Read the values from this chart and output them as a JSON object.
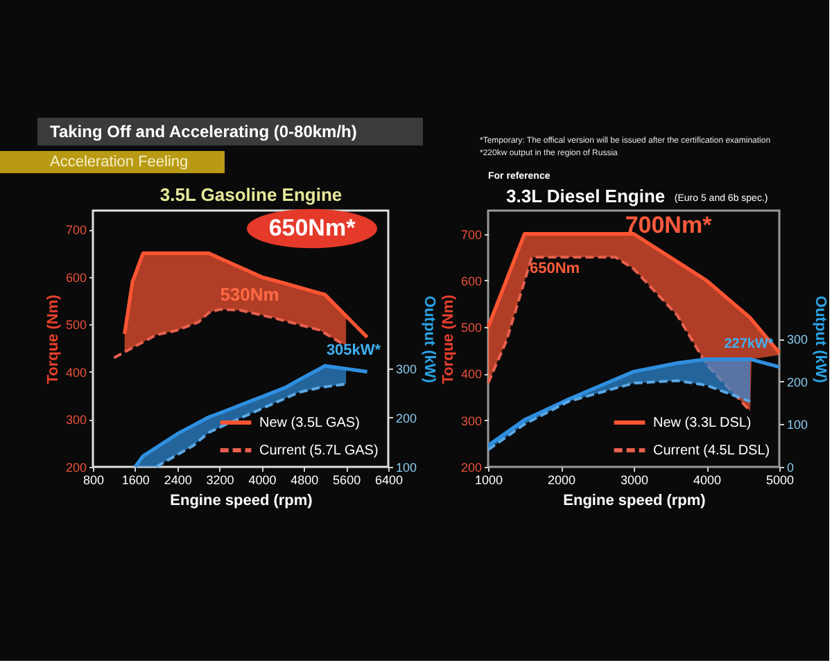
{
  "chart_data": [
    {
      "type": "other",
      "title": "Taking Off and Accelerating (0-80km/h)",
      "subtitle": "Acceleration Feeling",
      "annotations": [
        "*Temporary: The offical version will be issued after the certification examination",
        "*220kw output in the region of Russia"
      ]
    },
    {
      "type": "line",
      "title": "3.5L Gasoline Engine",
      "xlabel": "Engine speed (rpm)",
      "ylabel": "Torque (Nm)",
      "y2label": "Output (kW)",
      "xlim": [
        800,
        6400
      ],
      "xticks": [
        800,
        1600,
        2400,
        3200,
        4000,
        4800,
        5600,
        6400
      ],
      "ylim": [
        200,
        740
      ],
      "yticks": [
        200,
        300,
        400,
        500,
        600,
        700
      ],
      "y2lim": [
        100,
        620
      ],
      "y2ticks": [
        100,
        200,
        300
      ],
      "legend": "bottom right",
      "annotations": [
        "650Nm*",
        "530Nm",
        "305kW*"
      ],
      "series": [
        {
          "name": "New (3.5L GAS)",
          "color": "#ff5533",
          "x": [
            1400,
            1550,
            1750,
            2000,
            2400,
            2800,
            3000,
            3200,
            3600,
            4000,
            4300,
            5100,
            5200,
            5600,
            6000
          ],
          "values": [
            480,
            590,
            650,
            650,
            650,
            650,
            650,
            640,
            620,
            600,
            591,
            566,
            563,
            518,
            473
          ],
          "lower": [
            442,
            451,
            463,
            478,
            488,
            505,
            525,
            532,
            530,
            520,
            512,
            488,
            481,
            455,
            null
          ],
          "upper": [
            480,
            590,
            650,
            650,
            650,
            650,
            650,
            640,
            620,
            600,
            591,
            566,
            563,
            518,
            null
          ]
        },
        {
          "name": "Current (5.7L GAS)",
          "color": "#e8604f",
          "line_style": "dashed",
          "x": [
            1200,
            2000,
            2400,
            2800,
            3000,
            3200,
            3600,
            4300,
            5100,
            5600
          ],
          "values": [
            430,
            478,
            488,
            505,
            525,
            532,
            530,
            512,
            488,
            455
          ]
        },
        {
          "color": "#2f8fe0",
          "axis": "y2",
          "x": [
            1600,
            1750,
            2000,
            2400,
            2700,
            3000,
            3300,
            3750,
            4000,
            4450,
            4700,
            5100,
            5200,
            5600,
            6000
          ],
          "values": [
            100,
            122,
            139,
            167,
            184,
            201,
            213,
            232,
            242,
            261,
            276,
            299,
            305,
            299,
            293
          ],
          "lower": [
            100,
            100,
            100,
            125,
            143,
            170,
            185,
            206,
            218,
            239,
            251,
            261,
            262,
            268,
            null
          ],
          "upper": [
            100,
            122,
            139,
            167,
            184,
            201,
            213,
            232,
            242,
            261,
            276,
            299,
            305,
            299,
            null
          ]
        },
        {
          "color": "#5aa8e6",
          "axis": "y2",
          "line_style": "dashed",
          "x": [
            2000,
            2700,
            3000,
            3300,
            4000,
            4700,
            5100,
            5600
          ],
          "values": [
            100,
            143,
            170,
            185,
            218,
            251,
            261,
            268
          ]
        }
      ]
    },
    {
      "type": "line",
      "title": "3.3L Diesel Engine",
      "subtitle": "(Euro 5 and 6b spec.)",
      "xlabel": "Engine speed (rpm)",
      "ylabel": "Torque (Nm)",
      "y2label": "Output (kW)",
      "xlim": [
        1000,
        5000
      ],
      "xticks": [
        1000,
        2000,
        3000,
        4000,
        5000
      ],
      "ylim": [
        200,
        750
      ],
      "yticks": [
        200,
        300,
        400,
        500,
        600,
        700
      ],
      "y2lim": [
        0,
        600
      ],
      "y2ticks": [
        0,
        100,
        200,
        300
      ],
      "legend": "bottom right",
      "annotations": [
        "For reference",
        "700Nm*",
        "650Nm",
        "227kW*"
      ],
      "series": [
        {
          "name": "New (3.3L DSL)",
          "color": "#ff5533",
          "x": [
            1000,
            1250,
            1500,
            1600,
            2750,
            3000,
            3600,
            4000,
            4600,
            4620,
            5000
          ],
          "values": [
            500,
            600,
            700,
            700,
            700,
            700,
            640,
            600,
            520,
            516,
            445
          ],
          "lower": [
            380,
            470,
            600,
            650,
            650,
            625,
            525,
            420,
            320,
            431,
            440
          ],
          "upper": [
            500,
            600,
            700,
            700,
            700,
            700,
            640,
            600,
            520,
            516,
            445
          ]
        },
        {
          "name": "Current (4.5L DSL)",
          "color": "#e8604f",
          "line_style": "dashed",
          "x": [
            1000,
            1250,
            1600,
            2750,
            3000,
            3600,
            4000,
            4600
          ],
          "values": [
            380,
            470,
            650,
            650,
            625,
            525,
            420,
            320
          ]
        },
        {
          "color": "#2f8fe0",
          "axis": "y2",
          "x": [
            1000,
            1500,
            2100,
            3000,
            3600,
            4000,
            4600,
            5000
          ],
          "values": [
            50,
            110,
            158,
            223,
            243,
            252,
            252,
            234
          ],
          "lower": [
            40,
            100,
            153,
            196,
            202,
            191,
            153,
            null
          ],
          "upper": [
            50,
            110,
            158,
            223,
            243,
            252,
            252,
            null
          ]
        },
        {
          "color": "#5aa8e6",
          "axis": "y2",
          "line_style": "dashed",
          "x": [
            1000,
            1500,
            2100,
            3000,
            3600,
            4000,
            4600
          ],
          "values": [
            40,
            100,
            153,
            196,
            202,
            191,
            153
          ]
        }
      ]
    }
  ]
}
